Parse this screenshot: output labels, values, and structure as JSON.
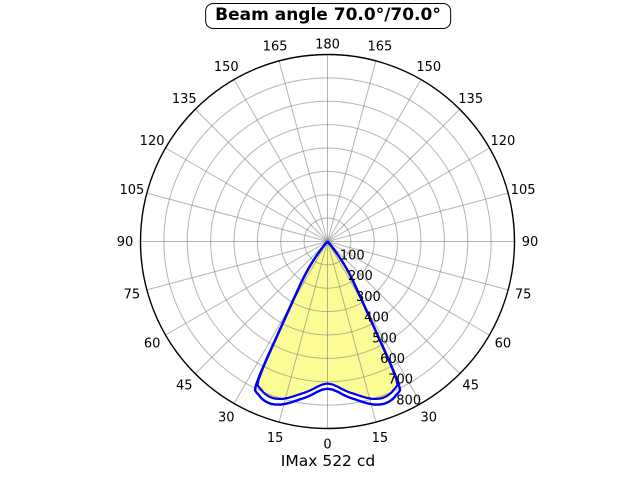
{
  "chart_data": {
    "type": "polar_intensity_distribution",
    "title": "Beam angle 70.0°/70.0°",
    "footer_label": "IMax 522 cd",
    "imax_cd": 522,
    "beam_angle_deg": "70.0/70.0",
    "orientation": "0-deg-at-bottom",
    "grid": true,
    "angle_tick_step_deg": 15,
    "angle_ticks": [
      "0",
      "15",
      "30",
      "45",
      "60",
      "75",
      "90",
      "105",
      "120",
      "135",
      "150",
      "165",
      "180"
    ],
    "angle_ticks_mirrored": true,
    "r_ticks": [
      "100",
      "200",
      "300",
      "400",
      "500",
      "600",
      "700",
      "800"
    ],
    "r_max": 800,
    "colors": {
      "curve": "#0000f2",
      "fill": "#fcfc96",
      "grid": "#b3b3b3",
      "outer_ring": "#000000",
      "background": "#ffffff"
    },
    "series": [
      {
        "name": "plane_C0_C180",
        "symmetric": true,
        "points_deg_value": [
          [
            0,
            630
          ],
          [
            2,
            634
          ],
          [
            4,
            645
          ],
          [
            6,
            660
          ],
          [
            8,
            674
          ],
          [
            10,
            686
          ],
          [
            12,
            700
          ],
          [
            14,
            714
          ],
          [
            16,
            726
          ],
          [
            18,
            733
          ],
          [
            19,
            735
          ],
          [
            20,
            735
          ],
          [
            21,
            734
          ],
          [
            22,
            731
          ],
          [
            23,
            727
          ],
          [
            24,
            720
          ],
          [
            25,
            715
          ],
          [
            26,
            708
          ],
          [
            26.5,
            685
          ],
          [
            27,
            630
          ],
          [
            27.5,
            550
          ],
          [
            28,
            475
          ],
          [
            28.5,
            420
          ],
          [
            29,
            375
          ],
          [
            29.5,
            340
          ],
          [
            30,
            310
          ],
          [
            31,
            262
          ],
          [
            32,
            228
          ],
          [
            33,
            200
          ],
          [
            34,
            172
          ],
          [
            35,
            145
          ],
          [
            36,
            118
          ],
          [
            37,
            92
          ],
          [
            38,
            68
          ],
          [
            39,
            48
          ],
          [
            40,
            32
          ],
          [
            41,
            20
          ],
          [
            42,
            12
          ],
          [
            43,
            6
          ],
          [
            44,
            3
          ],
          [
            45,
            1
          ],
          [
            46,
            0
          ]
        ]
      },
      {
        "name": "plane_C90_C270",
        "symmetric": true,
        "scale_of_first": 0.965
      }
    ]
  }
}
